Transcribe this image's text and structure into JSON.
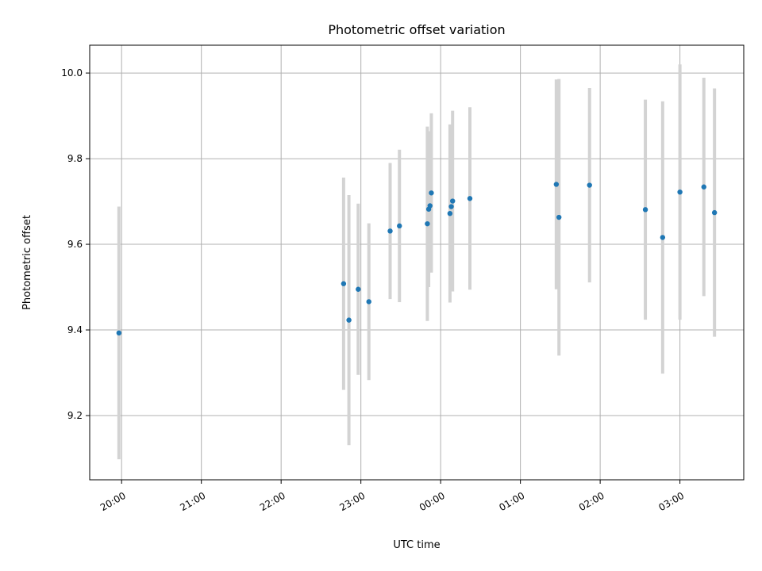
{
  "chart_data": {
    "type": "scatter",
    "title": "Photometric offset variation",
    "xlabel": "UTC time",
    "ylabel": "Photometric offset",
    "grid": true,
    "colors": {
      "marker": "#1f77b4",
      "errorbar": "#d3d3d3"
    },
    "x_ticks": [
      "20:00",
      "21:00",
      "22:00",
      "23:00",
      "00:00",
      "01:00",
      "02:00",
      "03:00"
    ],
    "y_ticks": [
      "9.2",
      "9.4",
      "9.6",
      "9.8",
      "10.0"
    ],
    "xlim": [
      "19:36",
      "03:48"
    ],
    "ylim": [
      9.05,
      10.065
    ],
    "points": [
      {
        "x": "19:58",
        "y": 9.393,
        "err": 0.295
      },
      {
        "x": "22:47",
        "y": 9.508,
        "err": 0.248
      },
      {
        "x": "22:51",
        "y": 9.423,
        "err": 0.292
      },
      {
        "x": "22:58",
        "y": 9.495,
        "err": 0.2
      },
      {
        "x": "23:06",
        "y": 9.466,
        "err": 0.183
      },
      {
        "x": "23:22",
        "y": 9.631,
        "err": 0.159
      },
      {
        "x": "23:29",
        "y": 9.643,
        "err": 0.178
      },
      {
        "x": "23:50",
        "y": 9.648,
        "err": 0.227
      },
      {
        "x": "23:51",
        "y": 9.682,
        "err": 0.182
      },
      {
        "x": "23:52",
        "y": 9.69,
        "err": 0.152
      },
      {
        "x": "23:53",
        "y": 9.72,
        "err": 0.186
      },
      {
        "x": "00:07",
        "y": 9.672,
        "err": 0.208
      },
      {
        "x": "00:08",
        "y": 9.688,
        "err": 0.185
      },
      {
        "x": "00:09",
        "y": 9.701,
        "err": 0.211
      },
      {
        "x": "00:22",
        "y": 9.707,
        "err": 0.213
      },
      {
        "x": "01:27",
        "y": 9.74,
        "err": 0.245
      },
      {
        "x": "01:29",
        "y": 9.663,
        "err": 0.323
      },
      {
        "x": "01:52",
        "y": 9.738,
        "err": 0.227
      },
      {
        "x": "02:34",
        "y": 9.681,
        "err": 0.257
      },
      {
        "x": "02:47",
        "y": 9.616,
        "err": 0.318
      },
      {
        "x": "03:00",
        "y": 9.722,
        "err": 0.298
      },
      {
        "x": "03:18",
        "y": 9.734,
        "err": 0.255
      },
      {
        "x": "03:26",
        "y": 9.674,
        "err": 0.29
      }
    ]
  }
}
